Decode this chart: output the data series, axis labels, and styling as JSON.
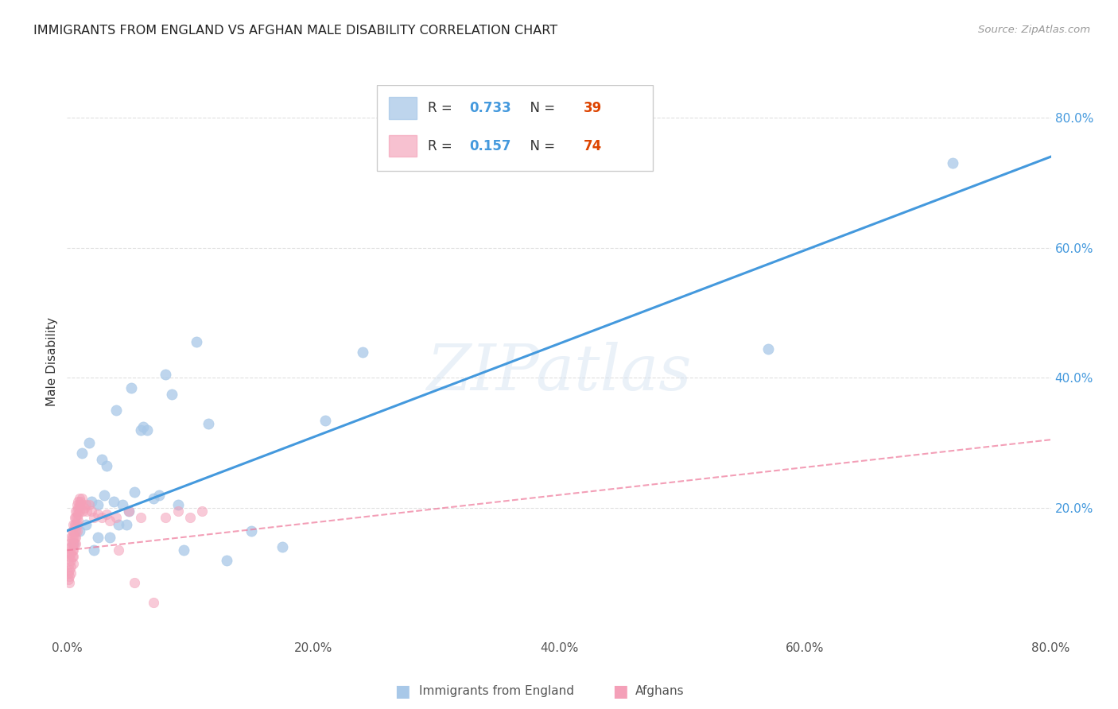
{
  "title": "IMMIGRANTS FROM ENGLAND VS AFGHAN MALE DISABILITY CORRELATION CHART",
  "source": "Source: ZipAtlas.com",
  "ylabel": "Male Disability",
  "xlim": [
    0.0,
    0.8
  ],
  "ylim": [
    0.0,
    0.85
  ],
  "ytick_positions": [
    0.2,
    0.4,
    0.6,
    0.8
  ],
  "xtick_positions": [
    0.0,
    0.2,
    0.4,
    0.6,
    0.8
  ],
  "blue_R": "0.733",
  "blue_N": "39",
  "pink_R": "0.157",
  "pink_N": "74",
  "blue_color": "#a8c8e8",
  "pink_color": "#f4a0b8",
  "blue_line_color": "#4499dd",
  "pink_line_color": "#ee7799",
  "watermark": "ZIPatlas",
  "background_color": "#ffffff",
  "grid_color": "#dddddd",
  "blue_scatter_x": [
    0.005,
    0.01,
    0.012,
    0.015,
    0.018,
    0.02,
    0.022,
    0.025,
    0.025,
    0.028,
    0.03,
    0.032,
    0.035,
    0.038,
    0.04,
    0.042,
    0.045,
    0.048,
    0.05,
    0.052,
    0.055,
    0.06,
    0.062,
    0.065,
    0.07,
    0.075,
    0.08,
    0.085,
    0.09,
    0.095,
    0.105,
    0.115,
    0.13,
    0.15,
    0.175,
    0.21,
    0.24,
    0.57,
    0.72
  ],
  "blue_scatter_y": [
    0.145,
    0.165,
    0.285,
    0.175,
    0.3,
    0.21,
    0.135,
    0.155,
    0.205,
    0.275,
    0.22,
    0.265,
    0.155,
    0.21,
    0.35,
    0.175,
    0.205,
    0.175,
    0.195,
    0.385,
    0.225,
    0.32,
    0.325,
    0.32,
    0.215,
    0.22,
    0.405,
    0.375,
    0.205,
    0.135,
    0.455,
    0.33,
    0.12,
    0.165,
    0.14,
    0.335,
    0.44,
    0.445,
    0.73
  ],
  "pink_scatter_x": [
    0.001,
    0.001,
    0.001,
    0.002,
    0.002,
    0.002,
    0.002,
    0.002,
    0.002,
    0.003,
    0.003,
    0.003,
    0.003,
    0.003,
    0.003,
    0.004,
    0.004,
    0.004,
    0.004,
    0.004,
    0.005,
    0.005,
    0.005,
    0.005,
    0.005,
    0.005,
    0.005,
    0.006,
    0.006,
    0.006,
    0.006,
    0.006,
    0.007,
    0.007,
    0.007,
    0.007,
    0.007,
    0.007,
    0.008,
    0.008,
    0.008,
    0.008,
    0.008,
    0.009,
    0.009,
    0.009,
    0.009,
    0.01,
    0.01,
    0.01,
    0.011,
    0.012,
    0.012,
    0.013,
    0.014,
    0.015,
    0.016,
    0.018,
    0.02,
    0.022,
    0.025,
    0.028,
    0.032,
    0.035,
    0.04,
    0.042,
    0.05,
    0.055,
    0.06,
    0.07,
    0.08,
    0.09,
    0.1,
    0.11
  ],
  "pink_scatter_y": [
    0.13,
    0.1,
    0.09,
    0.145,
    0.125,
    0.115,
    0.105,
    0.095,
    0.085,
    0.155,
    0.14,
    0.13,
    0.12,
    0.11,
    0.1,
    0.165,
    0.155,
    0.145,
    0.135,
    0.125,
    0.175,
    0.165,
    0.155,
    0.145,
    0.135,
    0.125,
    0.115,
    0.185,
    0.175,
    0.165,
    0.155,
    0.145,
    0.195,
    0.185,
    0.175,
    0.165,
    0.155,
    0.145,
    0.205,
    0.195,
    0.185,
    0.175,
    0.165,
    0.21,
    0.2,
    0.19,
    0.18,
    0.215,
    0.205,
    0.195,
    0.21,
    0.215,
    0.205,
    0.195,
    0.2,
    0.205,
    0.195,
    0.205,
    0.195,
    0.185,
    0.19,
    0.185,
    0.19,
    0.18,
    0.185,
    0.135,
    0.195,
    0.085,
    0.185,
    0.055,
    0.185,
    0.195,
    0.185,
    0.195
  ],
  "blue_line_x0": 0.0,
  "blue_line_y0": 0.165,
  "blue_line_x1": 0.8,
  "blue_line_y1": 0.74,
  "pink_line_x0": 0.0,
  "pink_line_y0": 0.135,
  "pink_line_x1": 0.8,
  "pink_line_y1": 0.305
}
